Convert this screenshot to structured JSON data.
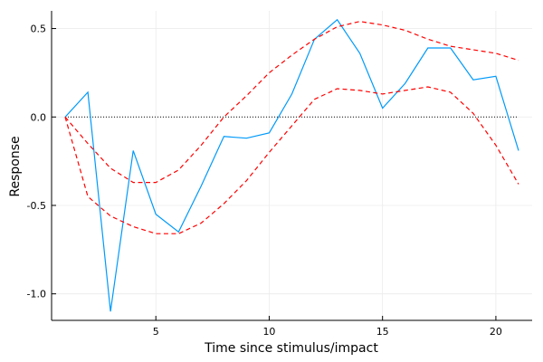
{
  "chart_data": {
    "type": "line",
    "xlabel": "Time since stimulus/impact",
    "ylabel": "Response",
    "xlim": [
      0.4,
      21.6
    ],
    "ylim": [
      -1.15,
      0.6
    ],
    "grid": true,
    "legend": "none",
    "x_ticks": [
      {
        "value": 5,
        "label": "5"
      },
      {
        "value": 10,
        "label": "10"
      },
      {
        "value": 15,
        "label": "15"
      },
      {
        "value": 20,
        "label": "20"
      }
    ],
    "y_ticks": [
      {
        "value": 0.5,
        "label": "0.5"
      },
      {
        "value": 0.0,
        "label": "0.0"
      },
      {
        "value": -0.5,
        "label": "-0.5"
      },
      {
        "value": -1.0,
        "label": "-1.0"
      }
    ],
    "zero_line": 0.0,
    "x": [
      1,
      2,
      3,
      4,
      5,
      6,
      7,
      8,
      9,
      10,
      11,
      12,
      13,
      14,
      15,
      16,
      17,
      18,
      19,
      20,
      21
    ],
    "series": [
      {
        "style": "solid",
        "color": "#009AFA",
        "values": [
          0.0,
          0.14,
          -1.1,
          -0.19,
          -0.55,
          -0.65,
          -0.39,
          -0.11,
          -0.12,
          -0.09,
          0.13,
          0.44,
          0.55,
          0.36,
          0.05,
          0.19,
          0.39,
          0.39,
          0.21,
          0.23,
          -0.19
        ]
      },
      {
        "style": "dashed",
        "color": "#FF0000",
        "values": [
          0.0,
          -0.15,
          -0.29,
          -0.37,
          -0.37,
          -0.3,
          -0.16,
          0.0,
          0.12,
          0.25,
          0.35,
          0.44,
          0.51,
          0.54,
          0.52,
          0.49,
          0.44,
          0.4,
          0.38,
          0.36,
          0.32
        ]
      },
      {
        "style": "dashed",
        "color": "#FF0000",
        "values": [
          0.0,
          -0.45,
          -0.56,
          -0.62,
          -0.66,
          -0.66,
          -0.6,
          -0.49,
          -0.36,
          -0.2,
          -0.05,
          0.1,
          0.16,
          0.15,
          0.13,
          0.15,
          0.17,
          0.14,
          0.02,
          -0.16,
          -0.38
        ]
      }
    ]
  }
}
